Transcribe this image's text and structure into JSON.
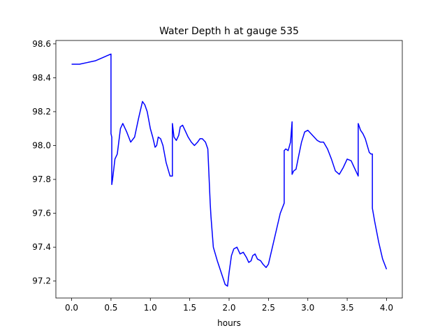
{
  "chart_data": {
    "type": "line",
    "title": "Water Depth h at gauge 535",
    "xlabel": "hours",
    "ylabel": "",
    "xlim": [
      -0.2,
      4.2
    ],
    "ylim": [
      97.1,
      98.62
    ],
    "xticks": [
      0.0,
      0.5,
      1.0,
      1.5,
      2.0,
      2.5,
      3.0,
      3.5,
      4.0
    ],
    "xtick_labels": [
      "0.0",
      "0.5",
      "1.0",
      "1.5",
      "2.0",
      "2.5",
      "3.0",
      "3.5",
      "4.0"
    ],
    "yticks": [
      97.2,
      97.4,
      97.6,
      97.8,
      98.0,
      98.2,
      98.4,
      98.6
    ],
    "ytick_labels": [
      "97.2",
      "97.4",
      "97.6",
      "97.8",
      "98.0",
      "98.2",
      "98.4",
      "98.6"
    ],
    "grid": false,
    "series": [
      {
        "color": "#0000ff",
        "x": [
          0.0,
          0.1,
          0.2,
          0.3,
          0.4,
          0.45,
          0.5,
          0.5,
          0.51,
          0.51,
          0.52,
          0.55,
          0.58,
          0.62,
          0.65,
          0.7,
          0.75,
          0.8,
          0.85,
          0.9,
          0.93,
          0.96,
          1.0,
          1.03,
          1.06,
          1.08,
          1.1,
          1.13,
          1.16,
          1.2,
          1.25,
          1.28,
          1.28,
          1.3,
          1.33,
          1.36,
          1.38,
          1.41,
          1.44,
          1.48,
          1.52,
          1.56,
          1.6,
          1.63,
          1.66,
          1.7,
          1.73,
          1.76,
          1.77,
          1.77,
          1.8,
          1.85,
          1.9,
          1.95,
          1.98,
          2.0,
          2.03,
          2.06,
          2.1,
          2.14,
          2.18,
          2.22,
          2.25,
          2.28,
          2.3,
          2.33,
          2.36,
          2.4,
          2.43,
          2.47,
          2.5,
          2.55,
          2.6,
          2.65,
          2.7,
          2.7,
          2.72,
          2.75,
          2.78,
          2.8,
          2.8,
          2.82,
          2.85,
          2.88,
          2.92,
          2.96,
          3.0,
          3.04,
          3.08,
          3.12,
          3.16,
          3.2,
          3.25,
          3.3,
          3.35,
          3.4,
          3.45,
          3.5,
          3.55,
          3.6,
          3.64,
          3.64,
          3.67,
          3.7,
          3.73,
          3.78,
          3.8,
          3.82,
          3.82,
          3.85,
          3.9,
          3.95,
          4.0
        ],
        "y": [
          98.48,
          98.48,
          98.49,
          98.5,
          98.52,
          98.53,
          98.54,
          98.07,
          98.05,
          97.77,
          97.8,
          97.92,
          97.95,
          98.1,
          98.13,
          98.08,
          98.02,
          98.05,
          98.16,
          98.26,
          98.24,
          98.2,
          98.1,
          98.05,
          97.99,
          98.0,
          98.05,
          98.04,
          98.0,
          97.9,
          97.82,
          97.82,
          98.13,
          98.05,
          98.03,
          98.06,
          98.11,
          98.12,
          98.09,
          98.05,
          98.02,
          98.0,
          98.02,
          98.04,
          98.04,
          98.02,
          97.98,
          97.66,
          97.58,
          97.58,
          97.4,
          97.32,
          97.25,
          97.18,
          97.17,
          97.25,
          97.35,
          97.39,
          97.4,
          97.36,
          97.37,
          97.34,
          97.31,
          97.32,
          97.35,
          97.36,
          97.33,
          97.32,
          97.3,
          97.28,
          97.3,
          97.4,
          97.5,
          97.6,
          97.66,
          97.97,
          97.98,
          97.97,
          98.02,
          98.14,
          97.83,
          97.85,
          97.86,
          97.93,
          98.02,
          98.08,
          98.09,
          98.07,
          98.05,
          98.03,
          98.02,
          98.02,
          97.98,
          97.92,
          97.85,
          97.83,
          97.87,
          97.92,
          97.91,
          97.86,
          97.82,
          98.13,
          98.09,
          98.07,
          98.04,
          97.96,
          97.95,
          97.95,
          97.63,
          97.55,
          97.43,
          97.33,
          97.27
        ]
      }
    ]
  }
}
